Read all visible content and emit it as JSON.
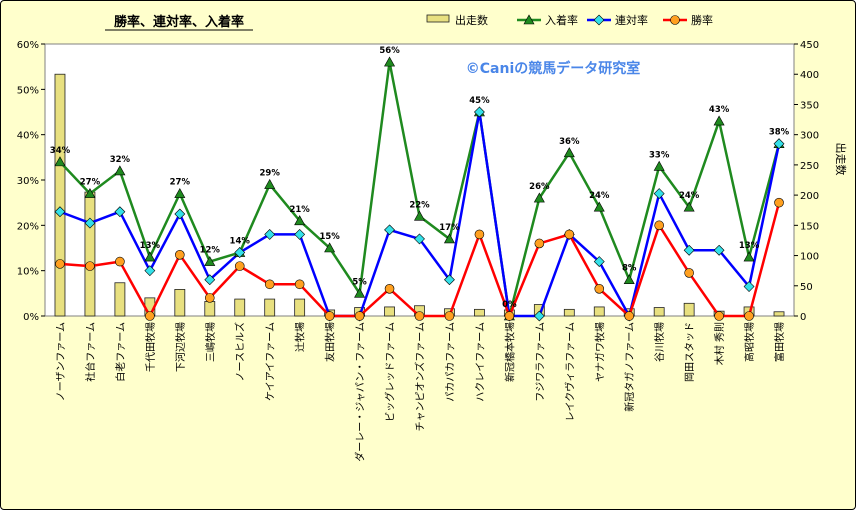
{
  "chart_data": {
    "type": "bar",
    "title": "勝率、連対率、入着率",
    "watermark": "©Caniの競馬データ研究室",
    "ylabel_right": "出走数",
    "ylim_left": [
      0,
      60
    ],
    "ylim_right": [
      0,
      450
    ],
    "yticks_left": [
      "0%",
      "10%",
      "20%",
      "30%",
      "40%",
      "50%",
      "60%"
    ],
    "yticks_right": [
      "0",
      "50",
      "100",
      "150",
      "200",
      "250",
      "300",
      "350",
      "400",
      "450"
    ],
    "grid": false,
    "legend_position": "top",
    "categories": [
      "ノーザンファーム",
      "社台ファーム",
      "白老ファーム",
      "千代田牧場",
      "下河辺牧場",
      "三嶋牧場",
      "ノースヒルズ",
      "ケイアイファーム",
      "辻牧場",
      "友田牧場",
      "ダーレー・ジャパン・ファーム",
      "ビッグレッドファーム",
      "チャンピオンズファーム",
      "パカパカファーム",
      "ハクレイファーム",
      "新冠橋本牧場",
      "フジワラファーム",
      "レイクヴィラファーム",
      "ヤナガワ牧場",
      "新冠タガノファーム",
      "谷川牧場",
      "岡田スタッド",
      "木村 秀則",
      "高昭牧場",
      "富田牧場"
    ],
    "series": [
      {
        "name": "出走数",
        "type": "bar",
        "axis": "right",
        "color": "#e8e080",
        "values": [
          400,
          205,
          55,
          30,
          44,
          24,
          28,
          28,
          28,
          10,
          14,
          15,
          17,
          12,
          11,
          10,
          19,
          11,
          15,
          12,
          14,
          21,
          8,
          15,
          7
        ]
      },
      {
        "name": "入着率",
        "type": "line",
        "axis": "left",
        "color": "#1f8a1f",
        "marker": "triangle",
        "labels": true,
        "values": [
          34,
          27,
          32,
          13,
          27,
          12,
          14,
          29,
          21,
          15,
          5,
          56,
          22,
          17,
          45,
          0,
          26,
          36,
          24,
          8,
          33,
          24,
          43,
          13,
          38
        ]
      },
      {
        "name": "連対率",
        "type": "line",
        "axis": "left",
        "color": "#0000ff",
        "marker": "diamond",
        "values": [
          23,
          20.5,
          23,
          10,
          22.5,
          8,
          14,
          18,
          18,
          0,
          0,
          19,
          17,
          8,
          45,
          0,
          0,
          18,
          12,
          0,
          27,
          14.5,
          14.5,
          6.5,
          38
        ]
      },
      {
        "name": "勝率",
        "type": "line",
        "axis": "left",
        "color": "#ff0000",
        "marker": "circle",
        "values": [
          11.5,
          11,
          12,
          0,
          13.5,
          4,
          11,
          7,
          7,
          0,
          0,
          6,
          0,
          0,
          18,
          0,
          16,
          18,
          6,
          0,
          20,
          9.5,
          0,
          0,
          25
        ]
      }
    ],
    "data_labels": [
      "34%",
      "27%",
      "32%",
      "13%",
      "27%",
      "12%",
      "14%",
      "29%",
      "21%",
      "15%",
      "5%",
      "56%",
      "22%",
      "17%",
      "45%",
      "0%",
      "26%",
      "36%",
      "24%",
      "8%",
      "33%",
      "24%",
      "43%",
      "13%",
      "38%"
    ]
  }
}
